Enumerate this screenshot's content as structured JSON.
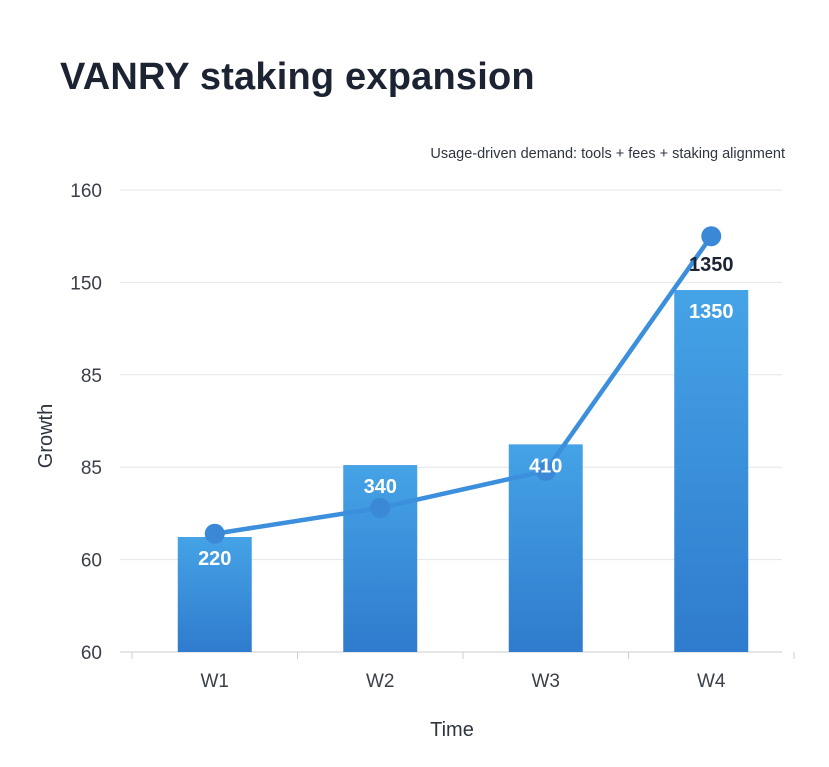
{
  "chart_data": {
    "type": "bar",
    "title": "VANRY staking expansion",
    "subtitle": "Usage-driven demand: tools + fees + staking alignment",
    "xlabel": "Time",
    "ylabel": "Growth",
    "categories": [
      "W1",
      "W2",
      "W3",
      "W4"
    ],
    "y_tick_labels": [
      "60",
      "60",
      "85",
      "85",
      "150",
      "160"
    ],
    "grid": true,
    "series": [
      {
        "type": "bar",
        "values": [
          220,
          340,
          410,
          1350
        ],
        "labels": [
          "220",
          "340",
          "410",
          "1350"
        ],
        "color": "#3b8fdc"
      },
      {
        "type": "line",
        "values": [
          67,
          74,
          84,
          155
        ],
        "point_labels": [
          "",
          "",
          "",
          "1350"
        ],
        "color": "#3b8fdc"
      }
    ]
  }
}
